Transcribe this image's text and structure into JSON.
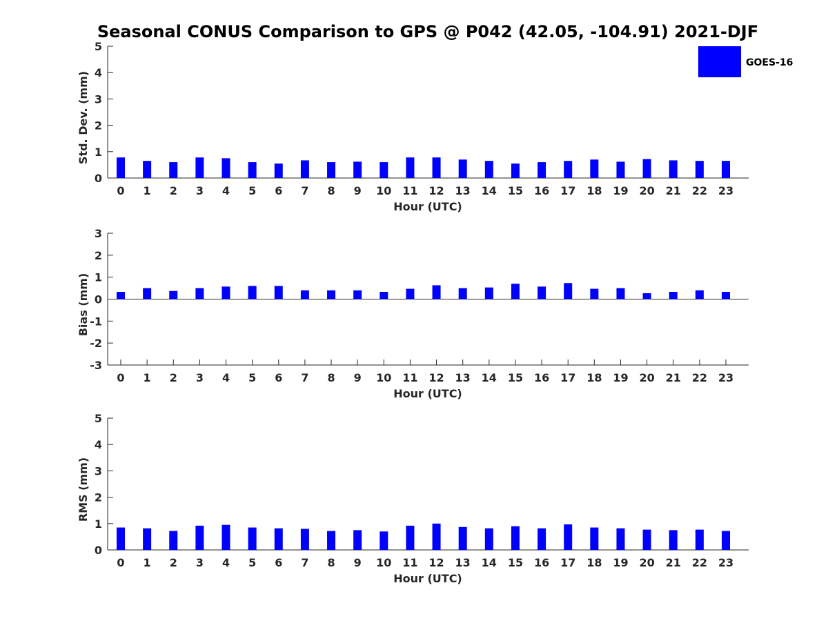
{
  "title": "Seasonal CONUS Comparison to GPS @ P042 (42.05, -104.91) 2021-DJF",
  "legend": {
    "label": "GOES-16",
    "color": "#0000ff",
    "placement": "top-right"
  },
  "chart_data": [
    {
      "type": "bar",
      "xlabel": "Hour (UTC)",
      "ylabel": "Std. Dev. (mm)",
      "ylim": [
        0,
        5
      ],
      "yticks": [
        0,
        1,
        2,
        3,
        4,
        5
      ],
      "categories": [
        "0",
        "1",
        "2",
        "3",
        "4",
        "5",
        "6",
        "7",
        "8",
        "9",
        "10",
        "11",
        "12",
        "13",
        "14",
        "15",
        "16",
        "17",
        "18",
        "19",
        "20",
        "21",
        "22",
        "23"
      ],
      "series": [
        {
          "name": "GOES-16",
          "values": [
            0.78,
            0.65,
            0.6,
            0.78,
            0.75,
            0.6,
            0.55,
            0.67,
            0.6,
            0.62,
            0.6,
            0.78,
            0.78,
            0.7,
            0.65,
            0.55,
            0.6,
            0.65,
            0.7,
            0.62,
            0.72,
            0.67,
            0.65,
            0.65
          ]
        }
      ]
    },
    {
      "type": "bar",
      "xlabel": "Hour (UTC)",
      "ylabel": "Bias (mm)",
      "ylim": [
        -3,
        3
      ],
      "yticks": [
        -3,
        -2,
        -1,
        0,
        1,
        2,
        3
      ],
      "categories": [
        "0",
        "1",
        "2",
        "3",
        "4",
        "5",
        "6",
        "7",
        "8",
        "9",
        "10",
        "11",
        "12",
        "13",
        "14",
        "15",
        "16",
        "17",
        "18",
        "19",
        "20",
        "21",
        "22",
        "23"
      ],
      "series": [
        {
          "name": "GOES-16",
          "values": [
            0.33,
            0.5,
            0.37,
            0.5,
            0.57,
            0.6,
            0.6,
            0.4,
            0.4,
            0.4,
            0.33,
            0.47,
            0.63,
            0.5,
            0.53,
            0.7,
            0.57,
            0.73,
            0.47,
            0.5,
            0.27,
            0.33,
            0.4,
            0.33
          ]
        }
      ]
    },
    {
      "type": "bar",
      "xlabel": "Hour (UTC)",
      "ylabel": "RMS (mm)",
      "ylim": [
        0,
        5
      ],
      "yticks": [
        0,
        1,
        2,
        3,
        4,
        5
      ],
      "categories": [
        "0",
        "1",
        "2",
        "3",
        "4",
        "5",
        "6",
        "7",
        "8",
        "9",
        "10",
        "11",
        "12",
        "13",
        "14",
        "15",
        "16",
        "17",
        "18",
        "19",
        "20",
        "21",
        "22",
        "23"
      ],
      "series": [
        {
          "name": "GOES-16",
          "values": [
            0.85,
            0.82,
            0.72,
            0.92,
            0.95,
            0.85,
            0.82,
            0.8,
            0.72,
            0.75,
            0.7,
            0.92,
            1.0,
            0.87,
            0.82,
            0.9,
            0.82,
            0.97,
            0.85,
            0.82,
            0.77,
            0.75,
            0.77,
            0.72
          ]
        }
      ]
    }
  ]
}
